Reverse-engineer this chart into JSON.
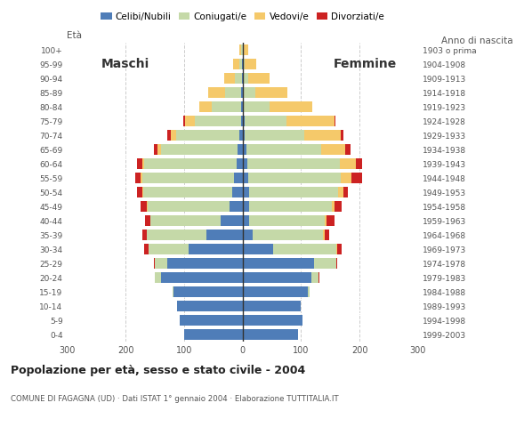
{
  "age_groups": [
    "0-4",
    "5-9",
    "10-14",
    "15-19",
    "20-24",
    "25-29",
    "30-34",
    "35-39",
    "40-44",
    "45-49",
    "50-54",
    "55-59",
    "60-64",
    "65-69",
    "70-74",
    "75-79",
    "80-84",
    "85-89",
    "90-94",
    "95-99",
    "100+"
  ],
  "birth_years": [
    "1999-2003",
    "1994-1998",
    "1989-1993",
    "1984-1988",
    "1979-1983",
    "1974-1978",
    "1969-1973",
    "1964-1968",
    "1959-1963",
    "1954-1958",
    "1949-1953",
    "1944-1948",
    "1939-1943",
    "1934-1938",
    "1929-1933",
    "1924-1928",
    "1919-1923",
    "1914-1918",
    "1909-1913",
    "1904-1908",
    "1903 o prima"
  ],
  "male": {
    "celibe": [
      100,
      108,
      112,
      118,
      140,
      128,
      92,
      62,
      38,
      22,
      18,
      14,
      10,
      8,
      5,
      3,
      2,
      2,
      1,
      1,
      0
    ],
    "coniugato": [
      0,
      0,
      0,
      2,
      10,
      22,
      68,
      102,
      120,
      140,
      152,
      158,
      158,
      132,
      108,
      78,
      50,
      28,
      12,
      5,
      2
    ],
    "vedovo": [
      0,
      0,
      0,
      0,
      0,
      0,
      0,
      0,
      0,
      1,
      2,
      2,
      4,
      6,
      10,
      18,
      22,
      28,
      18,
      10,
      3
    ],
    "divorziato": [
      0,
      0,
      0,
      0,
      0,
      2,
      8,
      8,
      8,
      12,
      8,
      10,
      8,
      5,
      5,
      2,
      0,
      0,
      0,
      0,
      0
    ]
  },
  "female": {
    "nubile": [
      95,
      102,
      100,
      112,
      118,
      122,
      52,
      18,
      12,
      12,
      12,
      10,
      8,
      6,
      4,
      3,
      2,
      2,
      1,
      1,
      0
    ],
    "coniugata": [
      0,
      0,
      0,
      2,
      12,
      38,
      108,
      120,
      128,
      140,
      152,
      158,
      158,
      128,
      102,
      72,
      45,
      20,
      8,
      3,
      1
    ],
    "vedova": [
      0,
      0,
      0,
      0,
      0,
      0,
      2,
      2,
      3,
      5,
      8,
      18,
      28,
      42,
      62,
      82,
      72,
      55,
      38,
      20,
      8
    ],
    "divorziata": [
      0,
      0,
      0,
      0,
      2,
      2,
      8,
      8,
      15,
      12,
      8,
      18,
      10,
      8,
      5,
      2,
      0,
      0,
      0,
      0,
      0
    ]
  },
  "colors": {
    "celibe": "#4f7db8",
    "coniugato": "#c5d9a8",
    "vedovo": "#f5c96a",
    "divorziato": "#cc2222"
  },
  "xlim": 300,
  "title": "Popolazione per età, sesso e stato civile - 2004",
  "subtitle": "COMUNE DI FAGAGNA (UD) · Dati ISTAT 1° gennaio 2004 · Elaborazione TUTTITALIA.IT",
  "label_maschi": "Maschi",
  "label_femmine": "Femmine",
  "label_eta": "Età",
  "label_anno": "Anno di nascita",
  "legend_labels": [
    "Celibi/Nubili",
    "Coniugati/e",
    "Vedovi/e",
    "Divorziati/e"
  ],
  "background_color": "#ffffff",
  "grid_color": "#aaaaaa"
}
